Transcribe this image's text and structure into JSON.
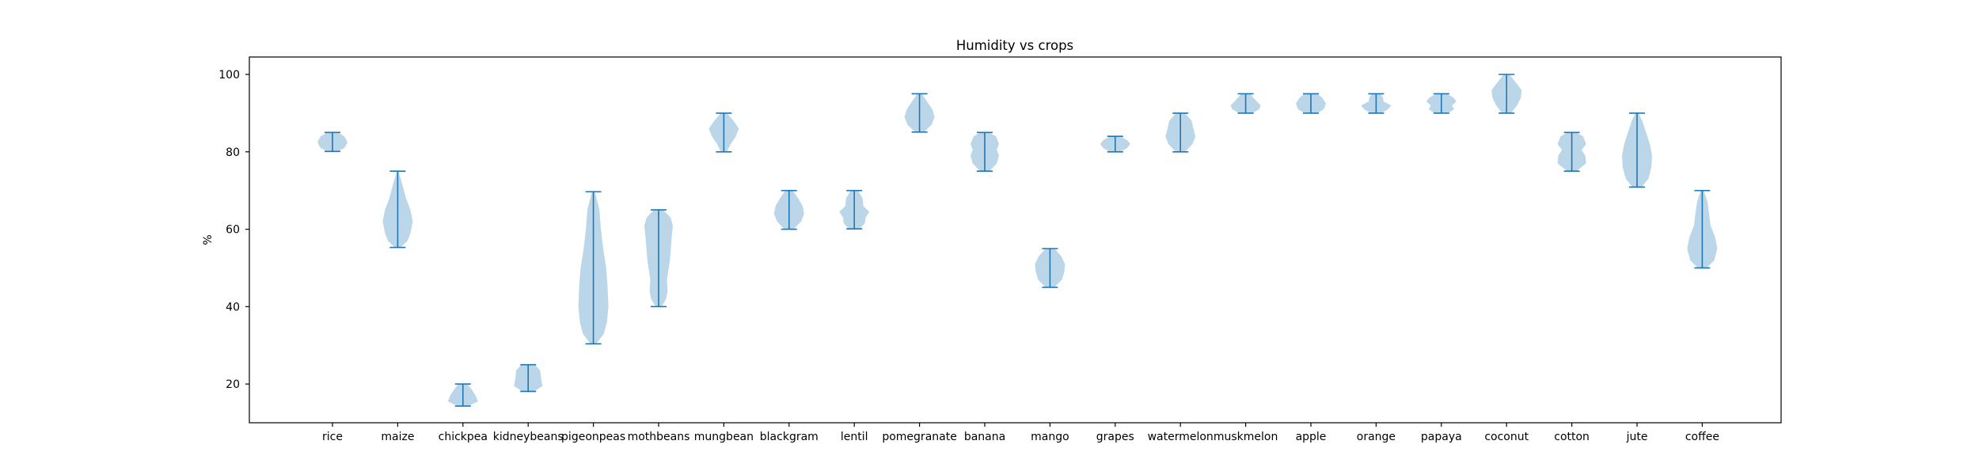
{
  "chart_data": {
    "type": "violin",
    "title": "Humidity vs crops",
    "xlabel": "",
    "ylabel": "%",
    "ylim": [
      10,
      104.5
    ],
    "yticks": [
      20,
      40,
      60,
      80,
      100
    ],
    "grid": false,
    "colors": {
      "body": "#1f77b4",
      "body_opacity": 0.3,
      "lines": "#1f77b4",
      "frame": "#000000"
    },
    "categories": [
      "rice",
      "maize",
      "chickpea",
      "kidneybeans",
      "pigeonpeas",
      "mothbeans",
      "mungbean",
      "blackgram",
      "lentil",
      "pomegranate",
      "banana",
      "mango",
      "grapes",
      "watermelon",
      "muskmelon",
      "apple",
      "orange",
      "papaya",
      "coconut",
      "cotton",
      "jute",
      "coffee"
    ],
    "series": [
      {
        "category": "rice",
        "min": 80.1,
        "max": 85.0,
        "profile": [
          [
            80.1,
            0.35
          ],
          [
            81.0,
            0.8
          ],
          [
            82.5,
            1.0
          ],
          [
            84.0,
            0.8
          ],
          [
            85.0,
            0.35
          ]
        ]
      },
      {
        "category": "maize",
        "min": 55.3,
        "max": 75.0,
        "profile": [
          [
            55.3,
            0.2
          ],
          [
            57.0,
            0.65
          ],
          [
            59.0,
            0.85
          ],
          [
            62.0,
            1.0
          ],
          [
            65.0,
            0.85
          ],
          [
            68.0,
            0.55
          ],
          [
            71.0,
            0.35
          ],
          [
            73.0,
            0.2
          ],
          [
            75.0,
            0.05
          ]
        ]
      },
      {
        "category": "chickpea",
        "min": 14.3,
        "max": 20.0,
        "profile": [
          [
            14.3,
            0.35
          ],
          [
            15.5,
            1.0
          ],
          [
            17.0,
            0.85
          ],
          [
            18.5,
            0.6
          ],
          [
            20.0,
            0.3
          ]
        ]
      },
      {
        "category": "kidneybeans",
        "min": 18.1,
        "max": 25.0,
        "profile": [
          [
            18.1,
            0.4
          ],
          [
            19.5,
            0.95
          ],
          [
            21.5,
            0.85
          ],
          [
            23.5,
            0.8
          ],
          [
            25.0,
            0.45
          ]
        ]
      },
      {
        "category": "pigeonpeas",
        "min": 30.4,
        "max": 69.7,
        "profile": [
          [
            30.4,
            0.2
          ],
          [
            33.0,
            0.7
          ],
          [
            36.0,
            0.9
          ],
          [
            40.0,
            1.0
          ],
          [
            45.0,
            0.95
          ],
          [
            50.0,
            0.85
          ],
          [
            55.0,
            0.65
          ],
          [
            60.0,
            0.5
          ],
          [
            65.0,
            0.4
          ],
          [
            69.7,
            0.1
          ]
        ]
      },
      {
        "category": "mothbeans",
        "min": 40.0,
        "max": 65.0,
        "profile": [
          [
            40.0,
            0.2
          ],
          [
            42.0,
            0.5
          ],
          [
            44.0,
            0.6
          ],
          [
            47.0,
            0.55
          ],
          [
            52.0,
            0.75
          ],
          [
            57.0,
            0.85
          ],
          [
            61.0,
            0.95
          ],
          [
            63.0,
            0.8
          ],
          [
            65.0,
            0.3
          ]
        ]
      },
      {
        "category": "mungbean",
        "min": 80.0,
        "max": 90.0,
        "profile": [
          [
            80.0,
            0.2
          ],
          [
            82.0,
            0.45
          ],
          [
            84.0,
            0.8
          ],
          [
            86.0,
            1.0
          ],
          [
            88.0,
            0.65
          ],
          [
            90.0,
            0.2
          ]
        ]
      },
      {
        "category": "blackgram",
        "min": 60.0,
        "max": 70.0,
        "profile": [
          [
            60.0,
            0.3
          ],
          [
            62.0,
            0.8
          ],
          [
            64.0,
            1.0
          ],
          [
            66.0,
            0.9
          ],
          [
            68.0,
            0.6
          ],
          [
            70.0,
            0.25
          ]
        ]
      },
      {
        "category": "lentil",
        "min": 60.1,
        "max": 70.0,
        "profile": [
          [
            60.1,
            0.35
          ],
          [
            61.5,
            0.7
          ],
          [
            63.0,
            0.75
          ],
          [
            64.5,
            1.0
          ],
          [
            66.0,
            0.6
          ],
          [
            68.0,
            0.55
          ],
          [
            70.0,
            0.25
          ]
        ]
      },
      {
        "category": "pomegranate",
        "min": 85.1,
        "max": 95.0,
        "profile": [
          [
            85.1,
            0.3
          ],
          [
            87.0,
            0.8
          ],
          [
            89.0,
            1.0
          ],
          [
            91.0,
            0.85
          ],
          [
            93.0,
            0.5
          ],
          [
            95.0,
            0.15
          ]
        ]
      },
      {
        "category": "banana",
        "min": 75.0,
        "max": 85.0,
        "profile": [
          [
            75.0,
            0.3
          ],
          [
            77.0,
            0.8
          ],
          [
            79.0,
            0.95
          ],
          [
            80.5,
            0.8
          ],
          [
            82.0,
            0.95
          ],
          [
            84.0,
            0.75
          ],
          [
            85.0,
            0.3
          ]
        ]
      },
      {
        "category": "mango",
        "min": 45.0,
        "max": 55.0,
        "profile": [
          [
            45.0,
            0.3
          ],
          [
            47.0,
            0.8
          ],
          [
            49.0,
            0.95
          ],
          [
            51.0,
            1.0
          ],
          [
            53.0,
            0.75
          ],
          [
            55.0,
            0.3
          ]
        ]
      },
      {
        "category": "grapes",
        "min": 80.0,
        "max": 84.0,
        "profile": [
          [
            80.0,
            0.35
          ],
          [
            81.0,
            0.8
          ],
          [
            82.0,
            1.0
          ],
          [
            83.0,
            0.8
          ],
          [
            84.0,
            0.35
          ]
        ]
      },
      {
        "category": "watermelon",
        "min": 80.0,
        "max": 90.0,
        "profile": [
          [
            80.0,
            0.3
          ],
          [
            82.0,
            0.8
          ],
          [
            84.0,
            1.0
          ],
          [
            86.0,
            0.85
          ],
          [
            88.0,
            0.75
          ],
          [
            90.0,
            0.3
          ]
        ]
      },
      {
        "category": "muskmelon",
        "min": 90.0,
        "max": 95.0,
        "profile": [
          [
            90.0,
            0.45
          ],
          [
            91.0,
            0.9
          ],
          [
            92.0,
            1.0
          ],
          [
            93.0,
            0.75
          ],
          [
            94.0,
            0.5
          ],
          [
            95.0,
            0.3
          ]
        ]
      },
      {
        "category": "apple",
        "min": 90.0,
        "max": 95.0,
        "profile": [
          [
            90.0,
            0.45
          ],
          [
            91.0,
            0.85
          ],
          [
            92.5,
            1.0
          ],
          [
            94.0,
            0.75
          ],
          [
            95.0,
            0.4
          ]
        ]
      },
      {
        "category": "orange",
        "min": 90.0,
        "max": 95.0,
        "profile": [
          [
            90.0,
            0.35
          ],
          [
            91.0,
            0.8
          ],
          [
            92.0,
            1.0
          ],
          [
            93.0,
            0.5
          ],
          [
            94.0,
            0.45
          ],
          [
            95.0,
            0.3
          ]
        ]
      },
      {
        "category": "papaya",
        "min": 90.0,
        "max": 95.0,
        "profile": [
          [
            90.0,
            0.45
          ],
          [
            91.0,
            0.85
          ],
          [
            92.0,
            0.7
          ],
          [
            93.0,
            1.0
          ],
          [
            94.0,
            0.8
          ],
          [
            95.0,
            0.35
          ]
        ]
      },
      {
        "category": "coconut",
        "min": 90.0,
        "max": 100.0,
        "profile": [
          [
            90.0,
            0.3
          ],
          [
            92.0,
            0.7
          ],
          [
            94.0,
            0.95
          ],
          [
            96.0,
            1.0
          ],
          [
            98.0,
            0.6
          ],
          [
            100.0,
            0.2
          ]
        ]
      },
      {
        "category": "cotton",
        "min": 75.0,
        "max": 85.0,
        "profile": [
          [
            75.0,
            0.3
          ],
          [
            77.0,
            0.95
          ],
          [
            79.0,
            0.9
          ],
          [
            80.5,
            0.65
          ],
          [
            82.0,
            0.95
          ],
          [
            84.0,
            0.75
          ],
          [
            85.0,
            0.3
          ]
        ]
      },
      {
        "category": "jute",
        "min": 70.9,
        "max": 90.0,
        "profile": [
          [
            70.9,
            0.3
          ],
          [
            73.0,
            0.75
          ],
          [
            76.0,
            0.95
          ],
          [
            79.0,
            1.0
          ],
          [
            82.0,
            0.85
          ],
          [
            85.0,
            0.6
          ],
          [
            88.0,
            0.35
          ],
          [
            90.0,
            0.1
          ]
        ]
      },
      {
        "category": "coffee",
        "min": 50.0,
        "max": 70.0,
        "profile": [
          [
            50.0,
            0.3
          ],
          [
            52.0,
            0.8
          ],
          [
            55.0,
            1.0
          ],
          [
            58.0,
            0.85
          ],
          [
            61.0,
            0.55
          ],
          [
            64.0,
            0.45
          ],
          [
            67.0,
            0.35
          ],
          [
            70.0,
            0.1
          ]
        ]
      }
    ]
  }
}
